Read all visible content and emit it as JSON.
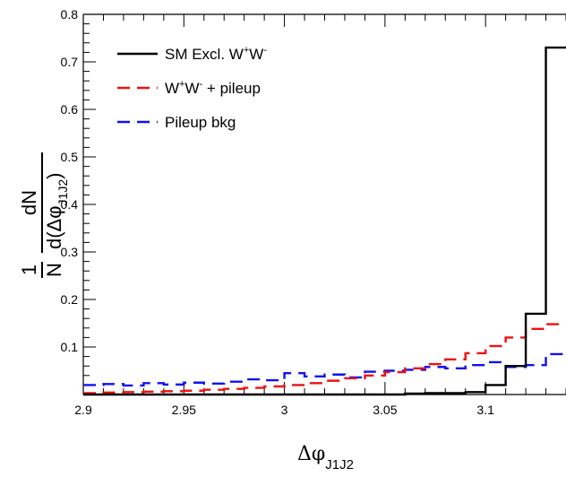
{
  "chart_data": {
    "type": "line",
    "title": "",
    "xlabel": "Δφ",
    "xlabel_subscript": "J1J2",
    "ylabel": {
      "prefix_num": "1",
      "prefix_den": "N",
      "frac_num": "dN",
      "frac_den_main": "d(Δφ",
      "frac_den_sub": "J1J2",
      "frac_den_close": ")"
    },
    "xlim": [
      2.9,
      3.14
    ],
    "ylim": [
      0,
      0.8
    ],
    "xticks": [
      2.9,
      2.95,
      3.0,
      3.05,
      3.1
    ],
    "xtick_labels": [
      "2.9",
      "2.95",
      "3",
      "3.05",
      "3.1"
    ],
    "yticks": [
      0.1,
      0.2,
      0.3,
      0.4,
      0.5,
      0.6,
      0.7,
      0.8
    ],
    "ytick_labels": [
      "0.1",
      "0.2",
      "0.3",
      "0.4",
      "0.5",
      "0.6",
      "0.7",
      "0.8"
    ],
    "legend_position": "top-left",
    "bin_edges": [
      2.9,
      2.91,
      2.92,
      2.93,
      2.94,
      2.95,
      2.96,
      2.97,
      2.98,
      2.99,
      3.0,
      3.01,
      3.02,
      3.03,
      3.04,
      3.05,
      3.06,
      3.07,
      3.08,
      3.09,
      3.1,
      3.11,
      3.12,
      3.13,
      3.14
    ],
    "series": [
      {
        "legend_main": "SM Excl. W",
        "legend_sup1": "+",
        "legend_mid": "W",
        "legend_sup2": "-",
        "legend_tail": "",
        "color": "#000000",
        "dash": "none",
        "values": [
          0,
          0,
          0,
          0,
          0,
          0,
          0,
          0,
          0,
          0,
          0,
          0,
          0,
          0,
          0,
          0,
          0.002,
          0.003,
          0.003,
          0.005,
          0.02,
          0.06,
          0.17,
          0.73
        ]
      },
      {
        "legend_main": "W",
        "legend_sup1": "+",
        "legend_mid": "W",
        "legend_sup2": "-",
        "legend_tail": " + pileup",
        "color": "#ee1111",
        "dash": "14,8",
        "values": [
          0.003,
          0.004,
          0.005,
          0.006,
          0.007,
          0.008,
          0.01,
          0.012,
          0.014,
          0.017,
          0.02,
          0.024,
          0.029,
          0.034,
          0.04,
          0.047,
          0.055,
          0.064,
          0.074,
          0.087,
          0.102,
          0.12,
          0.138,
          0.148
        ]
      },
      {
        "legend_main": "Pileup bkg",
        "legend_sup1": "",
        "legend_mid": "",
        "legend_sup2": "",
        "legend_tail": "",
        "color": "#1111ee",
        "dash": "14,8",
        "values": [
          0.02,
          0.022,
          0.019,
          0.024,
          0.021,
          0.025,
          0.023,
          0.027,
          0.032,
          0.03,
          0.045,
          0.038,
          0.042,
          0.036,
          0.048,
          0.05,
          0.052,
          0.058,
          0.055,
          0.062,
          0.068,
          0.058,
          0.062,
          0.085
        ]
      }
    ]
  }
}
